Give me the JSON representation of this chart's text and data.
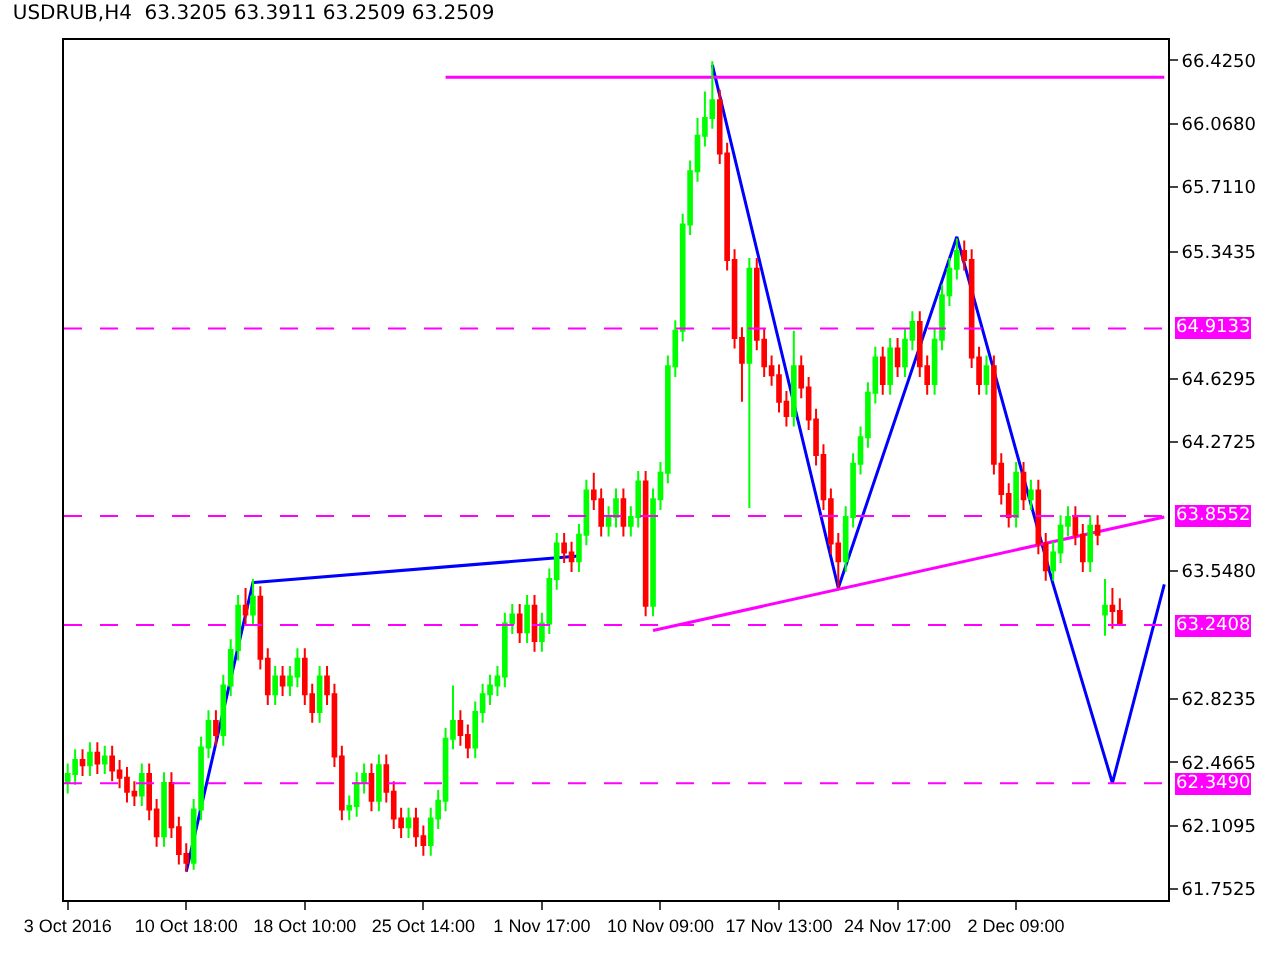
{
  "chart_data": {
    "type": "candlestick",
    "title": "USDRUB,H4  63.3205 63.3911 63.2509 63.2509",
    "categories": [
      "3 Oct 2016",
      null,
      null,
      null,
      null,
      null,
      null,
      null,
      null,
      null,
      null,
      null,
      null,
      null,
      null,
      null,
      "10 Oct 18:00",
      null,
      null,
      null,
      null,
      null,
      null,
      null,
      null,
      null,
      null,
      null,
      null,
      null,
      null,
      null,
      "18 Oct 10:00",
      null,
      null,
      null,
      null,
      null,
      null,
      null,
      null,
      null,
      null,
      null,
      null,
      null,
      null,
      null,
      "25 Oct 14:00",
      null,
      null,
      null,
      null,
      null,
      null,
      null,
      null,
      null,
      null,
      null,
      null,
      null,
      null,
      null,
      "1 Nov 17:00",
      null,
      null,
      null,
      null,
      null,
      null,
      null,
      null,
      null,
      null,
      null,
      null,
      null,
      null,
      null,
      "10 Nov 09:00",
      null,
      null,
      null,
      null,
      null,
      null,
      null,
      null,
      null,
      null,
      null,
      null,
      null,
      null,
      null,
      "17 Nov 13:00",
      null,
      null,
      null,
      null,
      null,
      null,
      null,
      null,
      null,
      null,
      null,
      null,
      null,
      null,
      null,
      "24 Nov 17:00",
      null,
      null,
      null,
      null,
      null,
      null,
      null,
      null,
      null,
      null,
      null,
      null,
      null,
      null,
      null,
      "2 Dec 09:00",
      null,
      null,
      null,
      null,
      null,
      null,
      null,
      null,
      null,
      null,
      null,
      null,
      null,
      null,
      null,
      null,
      null,
      null,
      null,
      null
    ],
    "ohlc": [
      [
        62.35,
        62.46,
        62.29,
        62.4
      ],
      [
        62.4,
        62.54,
        62.34,
        62.48
      ],
      [
        62.48,
        62.54,
        62.39,
        62.45
      ],
      [
        62.45,
        62.58,
        62.39,
        62.52
      ],
      [
        62.52,
        62.58,
        62.4,
        62.46
      ],
      [
        62.46,
        62.56,
        62.4,
        62.5
      ],
      [
        62.5,
        62.56,
        62.36,
        62.42
      ],
      [
        62.42,
        62.48,
        62.32,
        62.38
      ],
      [
        62.38,
        62.44,
        62.24,
        62.3
      ],
      [
        62.3,
        62.36,
        62.22,
        62.28
      ],
      [
        62.28,
        62.46,
        62.22,
        62.4
      ],
      [
        62.4,
        62.46,
        62.14,
        62.2
      ],
      [
        62.2,
        62.26,
        61.99,
        62.05
      ],
      [
        62.05,
        62.41,
        61.99,
        62.35
      ],
      [
        62.35,
        62.41,
        62.04,
        62.1
      ],
      [
        62.1,
        62.16,
        61.89,
        61.95
      ],
      [
        61.95,
        62.01,
        61.85,
        61.9
      ],
      [
        61.9,
        62.26,
        61.86,
        62.2
      ],
      [
        62.2,
        62.61,
        62.14,
        62.55
      ],
      [
        62.55,
        62.76,
        62.49,
        62.7
      ],
      [
        62.7,
        62.76,
        62.56,
        62.62
      ],
      [
        62.62,
        62.96,
        62.56,
        62.9
      ],
      [
        62.9,
        63.16,
        62.84,
        63.1
      ],
      [
        63.1,
        63.41,
        63.04,
        63.35
      ],
      [
        63.35,
        63.45,
        63.24,
        63.3
      ],
      [
        63.3,
        63.5,
        63.24,
        63.4
      ],
      [
        63.4,
        63.46,
        62.99,
        63.05
      ],
      [
        63.05,
        63.11,
        62.79,
        62.85
      ],
      [
        62.85,
        63.01,
        62.79,
        62.95
      ],
      [
        62.95,
        63.01,
        62.84,
        62.9
      ],
      [
        62.9,
        63.01,
        62.84,
        62.95
      ],
      [
        62.95,
        63.11,
        62.89,
        63.05
      ],
      [
        63.05,
        63.11,
        62.79,
        62.85
      ],
      [
        62.85,
        62.91,
        62.69,
        62.75
      ],
      [
        62.75,
        63.01,
        62.69,
        62.95
      ],
      [
        62.95,
        63.01,
        62.79,
        62.85
      ],
      [
        62.85,
        62.91,
        62.44,
        62.5
      ],
      [
        62.5,
        62.56,
        62.14,
        62.2
      ],
      [
        62.2,
        62.28,
        62.14,
        62.22
      ],
      [
        62.22,
        62.41,
        62.16,
        62.35
      ],
      [
        62.35,
        62.46,
        62.29,
        62.4
      ],
      [
        62.4,
        62.46,
        62.19,
        62.25
      ],
      [
        62.25,
        62.51,
        62.19,
        62.45
      ],
      [
        62.45,
        62.51,
        62.24,
        62.3
      ],
      [
        62.3,
        62.36,
        62.09,
        62.15
      ],
      [
        62.15,
        62.21,
        62.04,
        62.1
      ],
      [
        62.1,
        62.21,
        62.04,
        62.15
      ],
      [
        62.15,
        62.21,
        61.99,
        62.05
      ],
      [
        62.05,
        62.11,
        61.94,
        62.0
      ],
      [
        62.0,
        62.21,
        61.94,
        62.15
      ],
      [
        62.15,
        62.31,
        62.09,
        62.25
      ],
      [
        62.25,
        62.66,
        62.19,
        62.6
      ],
      [
        62.6,
        62.9,
        62.54,
        62.7
      ],
      [
        62.7,
        62.76,
        62.56,
        62.62
      ],
      [
        62.62,
        62.68,
        62.49,
        62.55
      ],
      [
        62.55,
        62.81,
        62.49,
        62.75
      ],
      [
        62.75,
        62.91,
        62.69,
        62.85
      ],
      [
        62.85,
        62.96,
        62.79,
        62.9
      ],
      [
        62.9,
        63.01,
        62.84,
        62.95
      ],
      [
        62.95,
        63.31,
        62.89,
        63.25
      ],
      [
        63.25,
        63.36,
        63.19,
        63.3
      ],
      [
        63.3,
        63.36,
        63.14,
        63.2
      ],
      [
        63.2,
        63.41,
        63.14,
        63.35
      ],
      [
        63.35,
        63.41,
        63.09,
        63.15
      ],
      [
        63.15,
        63.31,
        63.09,
        63.25
      ],
      [
        63.25,
        63.56,
        63.19,
        63.5
      ],
      [
        63.5,
        63.76,
        63.44,
        63.7
      ],
      [
        63.7,
        63.76,
        63.59,
        63.65
      ],
      [
        63.65,
        63.71,
        63.54,
        63.6
      ],
      [
        63.6,
        63.81,
        63.54,
        63.75
      ],
      [
        63.75,
        64.06,
        63.69,
        64.0
      ],
      [
        64.0,
        64.1,
        63.89,
        63.95
      ],
      [
        63.95,
        64.01,
        63.74,
        63.8
      ],
      [
        63.8,
        63.91,
        63.74,
        63.85
      ],
      [
        63.85,
        64.01,
        63.79,
        63.95
      ],
      [
        63.95,
        64.01,
        63.74,
        63.8
      ],
      [
        63.8,
        63.91,
        63.74,
        63.85
      ],
      [
        63.85,
        64.11,
        63.79,
        64.05
      ],
      [
        64.05,
        64.11,
        63.29,
        63.35
      ],
      [
        63.35,
        64.01,
        63.29,
        63.95
      ],
      [
        63.95,
        64.16,
        63.89,
        64.1
      ],
      [
        64.1,
        64.76,
        64.04,
        64.7
      ],
      [
        64.7,
        64.96,
        64.64,
        64.9
      ],
      [
        64.9,
        65.56,
        64.84,
        65.5
      ],
      [
        65.5,
        65.86,
        65.44,
        65.8
      ],
      [
        65.8,
        66.1,
        65.74,
        66.0
      ],
      [
        66.0,
        66.25,
        65.94,
        66.1
      ],
      [
        66.1,
        66.42,
        66.04,
        66.2
      ],
      [
        66.2,
        66.26,
        65.84,
        65.9
      ],
      [
        65.9,
        65.96,
        65.24,
        65.3
      ],
      [
        65.3,
        65.36,
        64.8,
        64.86
      ],
      [
        64.86,
        64.92,
        64.5,
        64.72
      ],
      [
        64.72,
        65.31,
        63.9,
        65.25
      ],
      [
        65.25,
        65.31,
        64.79,
        64.85
      ],
      [
        64.85,
        64.91,
        64.64,
        64.7
      ],
      [
        64.7,
        64.76,
        64.59,
        64.65
      ],
      [
        64.65,
        64.71,
        64.44,
        64.5
      ],
      [
        64.5,
        64.56,
        64.36,
        64.42
      ],
      [
        64.42,
        64.9,
        64.36,
        64.7
      ],
      [
        64.7,
        64.76,
        64.52,
        64.58
      ],
      [
        64.58,
        64.64,
        64.34,
        64.4
      ],
      [
        64.4,
        64.46,
        64.14,
        64.2
      ],
      [
        64.2,
        64.26,
        63.89,
        63.95
      ],
      [
        63.95,
        64.01,
        63.64,
        63.7
      ],
      [
        63.7,
        63.76,
        63.45,
        63.6
      ],
      [
        63.6,
        63.91,
        63.54,
        63.85
      ],
      [
        63.85,
        64.21,
        63.79,
        64.15
      ],
      [
        64.15,
        64.36,
        64.09,
        64.3
      ],
      [
        64.3,
        64.61,
        64.24,
        64.55
      ],
      [
        64.55,
        64.81,
        64.49,
        64.75
      ],
      [
        64.75,
        64.81,
        64.54,
        64.6
      ],
      [
        64.6,
        64.86,
        64.54,
        64.8
      ],
      [
        64.8,
        64.86,
        64.64,
        64.7
      ],
      [
        64.7,
        64.91,
        64.64,
        64.85
      ],
      [
        64.85,
        65.01,
        64.79,
        64.95
      ],
      [
        64.95,
        65.01,
        64.64,
        64.7
      ],
      [
        64.7,
        64.76,
        64.54,
        64.6
      ],
      [
        64.6,
        64.91,
        64.54,
        64.85
      ],
      [
        64.85,
        65.16,
        64.79,
        65.1
      ],
      [
        65.1,
        65.31,
        65.04,
        65.25
      ],
      [
        65.25,
        65.42,
        65.19,
        65.35
      ],
      [
        65.35,
        65.41,
        65.24,
        65.3
      ],
      [
        65.3,
        65.36,
        64.69,
        64.75
      ],
      [
        64.75,
        64.81,
        64.54,
        64.6
      ],
      [
        64.6,
        64.76,
        64.54,
        64.7
      ],
      [
        64.7,
        64.76,
        64.09,
        64.15
      ],
      [
        64.15,
        64.21,
        63.92,
        63.98
      ],
      [
        63.98,
        64.04,
        63.79,
        63.85
      ],
      [
        63.85,
        64.16,
        63.79,
        64.1
      ],
      [
        64.1,
        64.16,
        63.89,
        63.95
      ],
      [
        63.95,
        64.06,
        63.89,
        64.0
      ],
      [
        64.0,
        64.06,
        63.64,
        63.7
      ],
      [
        63.7,
        63.76,
        63.49,
        63.55
      ],
      [
        63.55,
        63.71,
        63.49,
        63.65
      ],
      [
        63.65,
        63.86,
        63.59,
        63.8
      ],
      [
        63.8,
        63.91,
        63.74,
        63.85
      ],
      [
        63.85,
        63.91,
        63.69,
        63.75
      ],
      [
        63.75,
        63.81,
        63.54,
        63.6
      ],
      [
        63.6,
        63.86,
        63.54,
        63.8
      ],
      [
        63.8,
        63.86,
        63.69,
        63.75
      ],
      [
        63.3,
        63.5,
        63.18,
        63.35
      ],
      [
        63.35,
        63.45,
        63.22,
        63.32
      ],
      [
        63.3205,
        63.3911,
        63.2509,
        63.2509
      ],
      null,
      null,
      null,
      null,
      null,
      null
    ],
    "colors": [
      "#00ff00",
      "#00ff00",
      "#ff0000",
      "#00ff00",
      "#ff0000",
      "#00ff00",
      "#ff0000",
      "#ff0000",
      "#ff0000",
      "#ff0000",
      "#00ff00",
      "#ff0000",
      "#ff0000",
      "#00ff00",
      "#ff0000",
      "#ff0000",
      "#ff0000",
      "#00ff00",
      "#00ff00",
      "#00ff00",
      "#ff0000",
      "#00ff00",
      "#00ff00",
      "#00ff00",
      "#ff0000",
      "#00ff00",
      "#ff0000",
      "#ff0000",
      "#00ff00",
      "#ff0000",
      "#00ff00",
      "#00ff00",
      "#ff0000",
      "#ff0000",
      "#00ff00",
      "#ff0000",
      "#ff0000",
      "#ff0000",
      "#00ff00",
      "#00ff00",
      "#00ff00",
      "#ff0000",
      "#00ff00",
      "#ff0000",
      "#ff0000",
      "#ff0000",
      "#00ff00",
      "#ff0000",
      "#ff0000",
      "#00ff00",
      "#00ff00",
      "#00ff00",
      "#00ff00",
      "#ff0000",
      "#ff0000",
      "#00ff00",
      "#00ff00",
      "#00ff00",
      "#00ff00",
      "#00ff00",
      "#00ff00",
      "#ff0000",
      "#00ff00",
      "#ff0000",
      "#00ff00",
      "#00ff00",
      "#00ff00",
      "#ff0000",
      "#ff0000",
      "#00ff00",
      "#00ff00",
      "#ff0000",
      "#ff0000",
      "#00ff00",
      "#00ff00",
      "#ff0000",
      "#00ff00",
      "#00ff00",
      "#ff0000",
      "#00ff00",
      "#00ff00",
      "#00ff00",
      "#00ff00",
      "#00ff00",
      "#00ff00",
      "#00ff00",
      "#00ff00",
      "#00ff00",
      "#ff0000",
      "#ff0000",
      "#ff0000",
      "#ff0000",
      "#00ff00",
      "#ff0000",
      "#ff0000",
      "#ff0000",
      "#ff0000",
      "#ff0000",
      "#00ff00",
      "#ff0000",
      "#ff0000",
      "#ff0000",
      "#ff0000",
      "#ff0000",
      "#ff0000",
      "#00ff00",
      "#00ff00",
      "#00ff00",
      "#00ff00",
      "#00ff00",
      "#ff0000",
      "#00ff00",
      "#ff0000",
      "#00ff00",
      "#00ff00",
      "#ff0000",
      "#ff0000",
      "#00ff00",
      "#00ff00",
      "#00ff00",
      "#00ff00",
      "#ff0000",
      "#ff0000",
      "#ff0000",
      "#00ff00",
      "#ff0000",
      "#ff0000",
      "#ff0000",
      "#00ff00",
      "#ff0000",
      "#00ff00",
      "#ff0000",
      "#ff0000",
      "#00ff00",
      "#00ff00",
      "#00ff00",
      "#ff0000",
      "#ff0000",
      "#00ff00",
      "#ff0000",
      "#00ff00",
      "#ff0000",
      "#ff0000",
      null,
      null,
      null,
      null,
      null,
      null
    ],
    "series": [
      {
        "type": "line",
        "color": "#0000ff",
        "values": [
          null,
          null,
          null,
          null,
          null,
          null,
          null,
          null,
          null,
          null,
          null,
          null,
          null,
          null,
          null,
          null,
          61.85,
          null,
          null,
          null,
          null,
          null,
          null,
          null,
          null,
          63.48,
          null,
          null,
          null,
          null,
          null,
          null,
          null,
          null,
          null,
          null,
          null,
          null,
          null,
          null,
          null,
          null,
          null,
          null,
          null,
          null,
          null,
          null,
          null,
          null,
          null,
          null,
          null,
          null,
          null,
          null,
          null,
          null,
          null,
          null,
          null,
          null,
          null,
          null,
          null,
          null,
          null,
          null,
          null,
          63.63,
          null,
          null,
          null,
          null,
          null,
          null,
          null,
          null,
          null,
          null,
          null,
          null,
          null,
          null,
          null,
          null,
          null,
          null,
          null,
          null,
          null,
          null,
          null,
          null,
          null,
          null,
          null,
          null,
          null,
          null,
          null,
          null,
          null,
          null,
          null,
          null,
          null,
          null,
          null,
          null,
          null,
          null,
          null,
          null,
          null,
          null,
          null,
          null,
          null,
          null,
          null,
          null,
          null,
          null,
          null,
          null,
          null,
          null,
          null,
          null,
          null,
          null,
          null,
          null,
          null,
          null,
          null,
          null,
          null,
          null,
          null,
          null,
          null,
          null,
          null,
          null,
          null,
          null,
          null
        ]
      },
      {
        "type": "line",
        "color": "#0000ff",
        "values": [
          null,
          null,
          null,
          null,
          null,
          null,
          null,
          null,
          null,
          null,
          null,
          null,
          null,
          null,
          null,
          null,
          null,
          null,
          null,
          null,
          null,
          null,
          null,
          null,
          null,
          null,
          null,
          null,
          null,
          null,
          null,
          null,
          null,
          null,
          null,
          null,
          null,
          null,
          null,
          null,
          null,
          null,
          null,
          null,
          null,
          null,
          null,
          null,
          null,
          null,
          null,
          null,
          null,
          null,
          null,
          null,
          null,
          null,
          null,
          null,
          null,
          null,
          null,
          null,
          null,
          null,
          null,
          null,
          null,
          null,
          null,
          null,
          null,
          null,
          null,
          null,
          null,
          null,
          null,
          null,
          null,
          null,
          null,
          null,
          null,
          null,
          null,
          66.4,
          null,
          null,
          null,
          null,
          null,
          null,
          null,
          null,
          null,
          null,
          null,
          null,
          null,
          null,
          null,
          null,
          63.45,
          null,
          null,
          null,
          null,
          null,
          null,
          null,
          null,
          null,
          null,
          null,
          null,
          null,
          null,
          null,
          65.43,
          null,
          null,
          null,
          null,
          null,
          null,
          null,
          null,
          null,
          null,
          null,
          null,
          63.47,
          null,
          null,
          null,
          null,
          null,
          null,
          null,
          62.35,
          null,
          null,
          null,
          null,
          null,
          null,
          63.47
        ]
      },
      {
        "type": "line",
        "color": "#ff00ff",
        "values": [
          null,
          null,
          null,
          null,
          null,
          null,
          null,
          null,
          null,
          null,
          null,
          null,
          null,
          null,
          null,
          null,
          null,
          null,
          null,
          null,
          null,
          null,
          null,
          null,
          null,
          null,
          null,
          null,
          null,
          null,
          null,
          null,
          null,
          null,
          null,
          null,
          null,
          null,
          null,
          null,
          null,
          null,
          null,
          null,
          null,
          null,
          null,
          null,
          null,
          null,
          null,
          null,
          null,
          null,
          null,
          null,
          null,
          null,
          null,
          null,
          null,
          null,
          null,
          null,
          null,
          null,
          null,
          null,
          null,
          null,
          null,
          null,
          null,
          null,
          null,
          null,
          null,
          null,
          null,
          63.21,
          null,
          null,
          null,
          null,
          null,
          null,
          null,
          null,
          null,
          null,
          null,
          null,
          null,
          null,
          null,
          null,
          null,
          null,
          null,
          null,
          null,
          null,
          null,
          null,
          null,
          null,
          null,
          null,
          null,
          null,
          null,
          null,
          null,
          null,
          null,
          null,
          null,
          null,
          null,
          null,
          null,
          null,
          null,
          null,
          null,
          null,
          null,
          null,
          null,
          null,
          null,
          null,
          null,
          null,
          null,
          null,
          null,
          null,
          null,
          null,
          null,
          null,
          null,
          null,
          null,
          null,
          null,
          null,
          63.85
        ]
      },
      {
        "type": "line",
        "color": "#ff00ff",
        "values": [
          null,
          null,
          null,
          null,
          null,
          null,
          null,
          null,
          null,
          null,
          null,
          null,
          null,
          null,
          null,
          null,
          null,
          null,
          null,
          null,
          null,
          null,
          null,
          null,
          null,
          null,
          null,
          null,
          null,
          null,
          null,
          null,
          null,
          null,
          null,
          null,
          null,
          null,
          null,
          null,
          null,
          null,
          null,
          null,
          null,
          null,
          null,
          null,
          null,
          null,
          null,
          66.33,
          null,
          null,
          null,
          null,
          null,
          null,
          null,
          null,
          null,
          null,
          null,
          null,
          null,
          null,
          null,
          null,
          null,
          null,
          null,
          null,
          null,
          null,
          null,
          null,
          null,
          null,
          null,
          null,
          null,
          null,
          null,
          null,
          null,
          null,
          null,
          null,
          null,
          null,
          null,
          null,
          null,
          null,
          null,
          null,
          null,
          null,
          null,
          null,
          null,
          null,
          null,
          null,
          null,
          null,
          null,
          null,
          null,
          null,
          null,
          null,
          null,
          null,
          null,
          null,
          null,
          null,
          null,
          null,
          null,
          null,
          null,
          null,
          null,
          null,
          null,
          null,
          null,
          null,
          null,
          null,
          null,
          null,
          null,
          null,
          null,
          null,
          null,
          null,
          null,
          null,
          null,
          null,
          null,
          null,
          null,
          null,
          66.33
        ]
      }
    ],
    "ref_lines": [
      {
        "axis": "y",
        "value": 64.9133,
        "label": "64.9133",
        "color": "#ff00ff",
        "line_style": "dashed"
      },
      {
        "axis": "y",
        "value": 63.8552,
        "label": "63.8552",
        "color": "#ff00ff",
        "line_style": "dashed"
      },
      {
        "axis": "y",
        "value": 63.2408,
        "label": "63.2408",
        "color": "#ff00ff",
        "line_style": "dashed"
      },
      {
        "axis": "y",
        "value": 62.349,
        "label": "62.3490",
        "color": "#ff00ff",
        "line_style": "dashed"
      }
    ],
    "yticks": [
      {
        "value": 66.425,
        "label": "66.4250"
      },
      {
        "value": 66.068,
        "label": "66.0680"
      },
      {
        "value": 65.711,
        "label": "65.7110"
      },
      {
        "value": 65.3435,
        "label": "65.3435"
      },
      {
        "value": 64.6295,
        "label": "64.6295"
      },
      {
        "value": 64.2725,
        "label": "64.2725"
      },
      {
        "value": 63.548,
        "label": "63.5480"
      },
      {
        "value": 62.8235,
        "label": "62.8235"
      },
      {
        "value": 62.4665,
        "label": "62.4665"
      },
      {
        "value": 62.1095,
        "label": "62.1095"
      },
      {
        "value": 61.7525,
        "label": "61.7525"
      }
    ],
    "ylim": [
      61.69,
      66.54
    ]
  }
}
